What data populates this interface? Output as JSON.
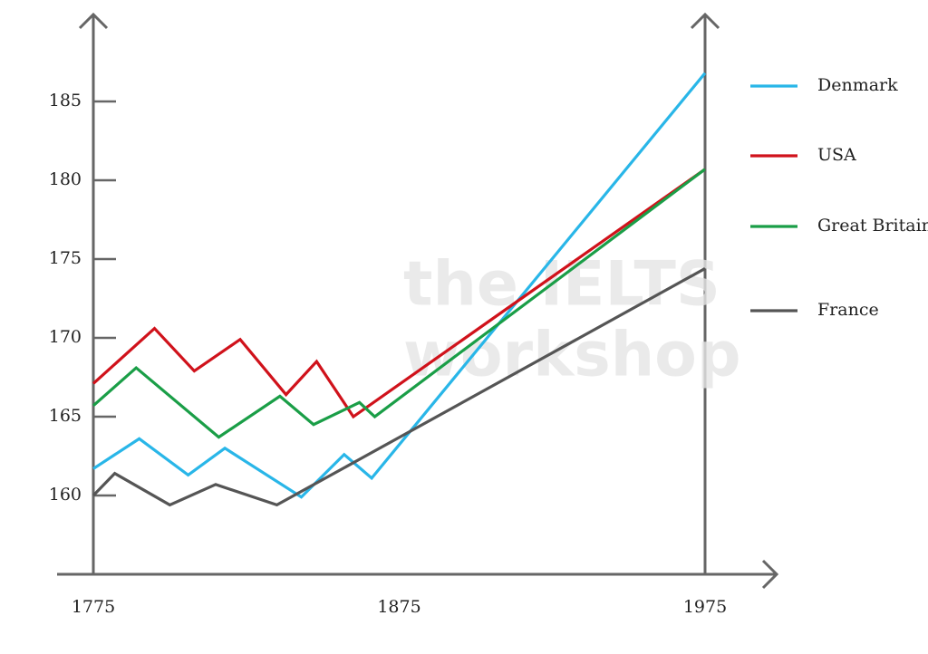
{
  "chart_data": {
    "type": "line",
    "watermark": [
      "the IELTS",
      "workshop"
    ],
    "xlim": [
      1775,
      1975
    ],
    "ylim": [
      155,
      190
    ],
    "xticks": [
      1775,
      1875,
      1975
    ],
    "yticks": [
      160,
      165,
      170,
      175,
      180,
      185
    ],
    "grid": false,
    "legend": "right",
    "series": [
      {
        "name": "Denmark",
        "color": "#29b6e8",
        "x": [
          1775,
          1790,
          1806,
          1818,
          1843,
          1857,
          1866,
          1975
        ],
        "values": [
          161.7,
          163.6,
          161.3,
          163.0,
          159.9,
          162.6,
          161.1,
          186.8
        ]
      },
      {
        "name": "USA",
        "color": "#d0121b",
        "x": [
          1775,
          1795,
          1808,
          1823,
          1838,
          1848,
          1860,
          1975
        ],
        "values": [
          167.1,
          170.6,
          167.9,
          169.9,
          166.4,
          168.5,
          165.0,
          180.7
        ]
      },
      {
        "name": "Great Britain",
        "color": "#1a9e47",
        "x": [
          1775,
          1789,
          1816,
          1836,
          1847,
          1862,
          1867,
          1975
        ],
        "values": [
          165.7,
          168.1,
          163.7,
          166.3,
          164.5,
          165.9,
          165.0,
          180.7
        ]
      },
      {
        "name": "France",
        "color": "#555555",
        "x": [
          1775,
          1782,
          1800,
          1815,
          1835,
          1975
        ],
        "values": [
          160.0,
          161.4,
          159.4,
          160.7,
          159.4,
          174.4
        ]
      }
    ]
  }
}
